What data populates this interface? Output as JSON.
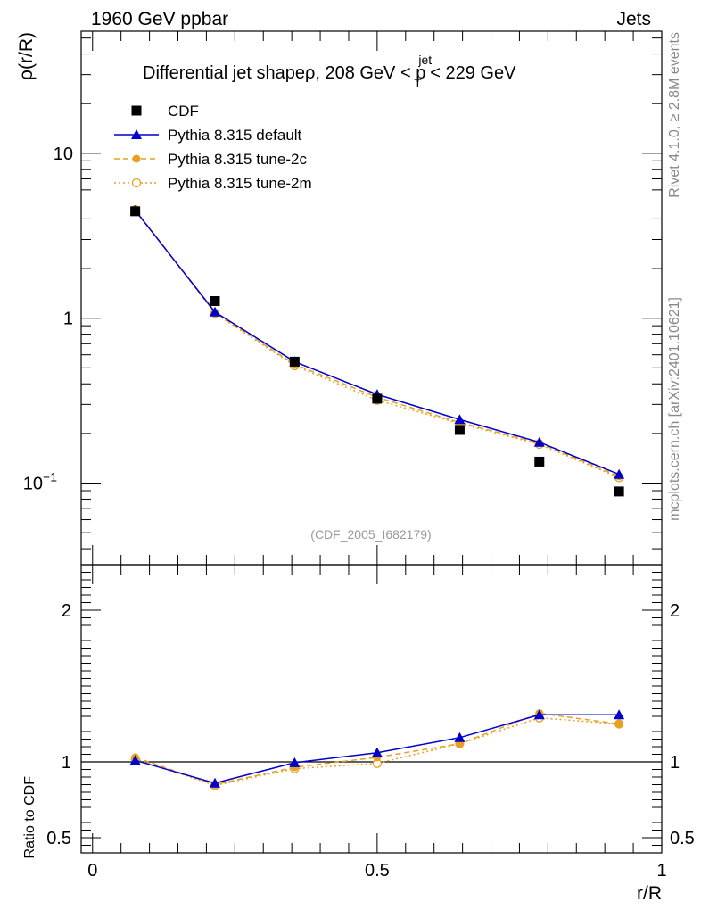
{
  "header": {
    "left_label": "1960 GeV ppbar",
    "right_label": "Jets",
    "side_label_top": "Rivet 4.1.0, ≥ 2.8M events",
    "side_label_bottom": "mcplots.cern.ch [arXiv:2401.10621]"
  },
  "chart_data": {
    "type": "line",
    "title_main": "Differential jet shapeρ, 208 GeV < p",
    "title_sup": "jet",
    "title_sub": "T",
    "title_tail": " < 229 GeV",
    "watermark": "(CDF_2005_I682179)",
    "xlabel": "r/R",
    "ylabel": "ρ(r/R)",
    "ratio_ylabel": "Ratio to CDF",
    "xlim": [
      -0.02,
      1.0
    ],
    "ylim_log": [
      0.032,
      55
    ],
    "ratio_ylim": [
      0.4,
      2.3
    ],
    "x_ticks": [
      {
        "value": 0,
        "label": "0"
      },
      {
        "value": 0.5,
        "label": "0.5"
      },
      {
        "value": 1,
        "label": "1"
      }
    ],
    "y_ticks": [
      {
        "value": 0.1,
        "label": "10",
        "sup": "−1"
      },
      {
        "value": 1,
        "label": "1",
        "sup": ""
      },
      {
        "value": 10,
        "label": "10",
        "sup": ""
      }
    ],
    "ratio_ticks": [
      {
        "value": 0.5,
        "label": "0.5"
      },
      {
        "value": 1,
        "label": "1"
      },
      {
        "value": 2,
        "label": "2"
      }
    ],
    "x": [
      0.075,
      0.215,
      0.355,
      0.5,
      0.645,
      0.785,
      0.925
    ],
    "series": [
      {
        "name": "CDF",
        "style": "data",
        "color": "#000000",
        "values": [
          4.45,
          1.27,
          0.545,
          0.325,
          0.21,
          0.135,
          0.089
        ],
        "ratio": [
          1.0,
          1.0,
          1.0,
          1.0,
          1.0,
          1.0,
          1.0
        ]
      },
      {
        "name": "Pythia 8.315 default",
        "style": "solid-triangle",
        "color": "#0000cc",
        "values": [
          4.5,
          1.09,
          0.545,
          0.345,
          0.243,
          0.177,
          0.113
        ],
        "ratio": [
          1.01,
          0.86,
          0.995,
          1.06,
          1.16,
          1.31,
          1.31
        ]
      },
      {
        "name": "Pythia 8.315 tune-2c",
        "style": "dashed-filled-circle",
        "color": "#e8a020",
        "values": [
          4.55,
          1.08,
          0.525,
          0.332,
          0.233,
          0.175,
          0.11
        ],
        "ratio": [
          1.03,
          0.85,
          0.965,
          1.03,
          1.12,
          1.32,
          1.25
        ]
      },
      {
        "name": "Pythia 8.315 tune-2m",
        "style": "dotted-open-circle",
        "color": "#e8a020",
        "values": [
          4.55,
          1.07,
          0.515,
          0.318,
          0.23,
          0.172,
          0.108
        ],
        "ratio": [
          1.02,
          0.845,
          0.955,
          0.99,
          1.12,
          1.29,
          1.25
        ]
      }
    ]
  }
}
